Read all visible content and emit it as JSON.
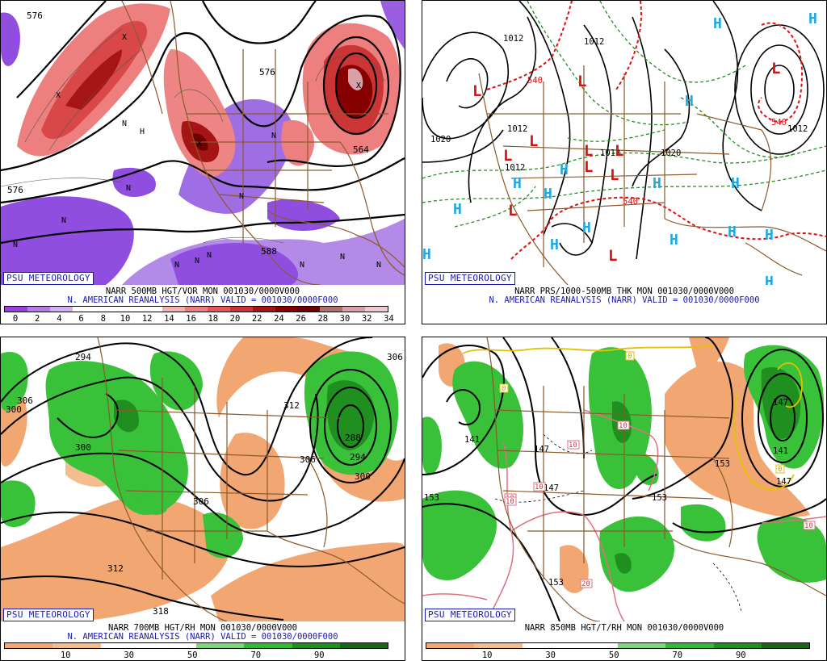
{
  "logo": "PSU METEOROLOGY",
  "colors": {
    "vor_scale": [
      "#9a3fe0",
      "#b87ae8",
      "#d3b0ef",
      "#ffffff",
      "#ffffff",
      "#ffffff",
      "#ffffff",
      "#f5b0b0",
      "#ee7f7f",
      "#e25858",
      "#cc3535",
      "#a51515",
      "#870000",
      "#6e0000",
      "#b07070",
      "#d8a0a8",
      "#f0c8d0"
    ],
    "rh_scale": [
      "#f2a772",
      "#f4bd8e",
      "#ffffff",
      "#ffffff",
      "#7fd67f",
      "#33bb33",
      "#1f8f1f",
      "#156615"
    ],
    "brown_map": "#8b5a2b",
    "green_fill": "#39c139",
    "dkgreen_fill": "#1f8f1f",
    "orange_fill": "#f2a772",
    "pos_vort": "#d93a3a",
    "neg_vort": "#8f4ee0"
  },
  "panels": {
    "vor": {
      "line1": "NARR 500MB HGT/VOR MON 001030/0000V000",
      "line2": "N. AMERICAN REANALYSIS (NARR) VALID = 001030/0000F000",
      "ticks": [
        "0",
        "2",
        "4",
        "6",
        "8",
        "10",
        "12",
        "14",
        "16",
        "18",
        "20",
        "22",
        "24",
        "26",
        "28",
        "30",
        "32",
        "34"
      ],
      "labels": [
        "576",
        "576",
        "588",
        "576",
        "564"
      ],
      "n_marks": [
        "N",
        "N",
        "N",
        "N",
        "N",
        "N",
        "N",
        "N",
        "N",
        "N",
        "N",
        "N"
      ],
      "x_marks": [
        "X",
        "X",
        "X",
        "X"
      ],
      "h_marks": [
        "H"
      ]
    },
    "prs": {
      "line1": "NARR PRS/1000-500MB THK MON 001030/0000V000",
      "line2": "N. AMERICAN REANALYSIS (NARR) VALID = 001030/0000F000",
      "labels": [
        "1012",
        "1012",
        "1020",
        "1012",
        "1012",
        "1012",
        "1020",
        "1012",
        "540",
        "540",
        "540"
      ],
      "lows": [
        "L",
        "L",
        "L",
        "L",
        "L",
        "L",
        "L",
        "L",
        "L",
        "L",
        "L"
      ],
      "highs": [
        "H",
        "H",
        "H",
        "H",
        "H",
        "H",
        "H",
        "H",
        "H",
        "H",
        "H",
        "H",
        "H",
        "H",
        "H",
        "H"
      ]
    },
    "rh700": {
      "line1": "NARR 700MB HGT/RH MON 001030/0000V000",
      "line2": "N. AMERICAN REANALYSIS (NARR) VALID = 001030/0000F000",
      "ticks": [
        "10",
        "30",
        "50",
        "70",
        "90"
      ],
      "labels": [
        "294",
        "306",
        "306",
        "300",
        "312",
        "306",
        "300",
        "294",
        "288",
        "306",
        "312",
        "318",
        "300"
      ]
    },
    "t850": {
      "line1": "NARR 850MB HGT/T/RH MON 001030/0000V000",
      "ticks": [
        "10",
        "30",
        "50",
        "70",
        "90"
      ],
      "labels": [
        "141",
        "147",
        "153",
        "153",
        "147",
        "153",
        "153",
        "147",
        "141",
        "147"
      ],
      "temps": [
        "0",
        "0",
        "10",
        "10",
        "10",
        "10",
        "10",
        "0",
        "20",
        "10"
      ]
    }
  }
}
